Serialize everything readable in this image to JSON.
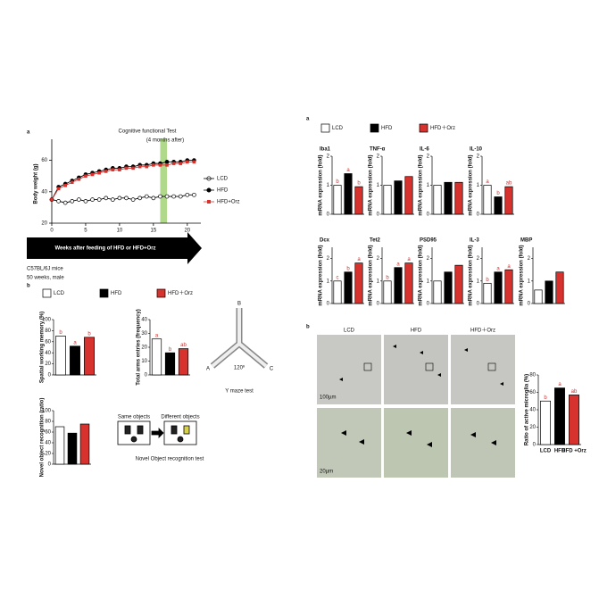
{
  "figure": {
    "group_colors": [
      "#ffffff",
      "#000000",
      "#d7322d"
    ],
    "left": {
      "panel_a": "a",
      "panel_b": "b",
      "arrow": "Weeks after feeding of HFD or HFD+Orz",
      "mouse": "C57BL/6J mice",
      "age": "50 weeks, male",
      "legend": [
        "LCD",
        "HFD",
        "HFD＋Orz"
      ],
      "ymaze": {
        "title": "Y maze test",
        "arms": [
          "A",
          "B",
          "C"
        ],
        "angle": "120º"
      },
      "nor": {
        "same": "Same objects",
        "diff": "Different objects",
        "title": "Novel Object recognition test"
      }
    },
    "right": {
      "panel_a": "a",
      "panel_b": "b",
      "legend": [
        "LCD",
        "HFD",
        "HFD＋Orz"
      ],
      "micro_cols": [
        "LCD",
        "HFD",
        "HFD＋Orz"
      ],
      "scale_low": "100µm",
      "scale_high": "20µm"
    }
  },
  "chart_data": [
    {
      "type": "line",
      "title": "Cognitive functional Test",
      "annotation": "(4 months after)",
      "ylabel": "Body weight (g)",
      "x": [
        0,
        1,
        2,
        3,
        4,
        5,
        6,
        7,
        8,
        9,
        10,
        11,
        12,
        13,
        14,
        15,
        16,
        17,
        18,
        19,
        20,
        21
      ],
      "xlim": [
        0,
        22
      ],
      "xticks": [
        0,
        5,
        10,
        15,
        20
      ],
      "ylim": [
        20,
        70
      ],
      "yticks": [
        20,
        40,
        60
      ],
      "highlight_x": [
        16,
        17
      ],
      "series": [
        {
          "name": "LCD",
          "color": "#000000",
          "marker": "open",
          "values": [
            35,
            34,
            33,
            34,
            35,
            34,
            35,
            35,
            36,
            35,
            36,
            36,
            35,
            36,
            37,
            36,
            37,
            37,
            37,
            37,
            38,
            38
          ]
        },
        {
          "name": "HFD",
          "color": "#000000",
          "marker": "filled",
          "values": [
            35,
            43,
            45,
            47,
            49,
            51,
            52,
            53,
            54,
            55,
            55,
            56,
            56,
            57,
            57,
            58,
            58,
            59,
            59,
            59,
            60,
            60
          ]
        },
        {
          "name": "HFD+Orz",
          "color": "#d7322d",
          "marker": "square",
          "values": [
            35,
            42,
            44,
            46,
            48,
            50,
            51,
            52,
            53,
            54,
            54,
            55,
            55,
            56,
            56,
            57,
            57,
            57,
            58,
            58,
            59,
            59
          ]
        }
      ]
    },
    {
      "type": "bar",
      "ylabel": "Spatial working memory (%)",
      "values": [
        70,
        52,
        68
      ],
      "ylim": [
        0,
        100
      ],
      "yticks": [
        0,
        20,
        40,
        60,
        80,
        100
      ],
      "letters": [
        "b",
        "a",
        "b"
      ]
    },
    {
      "type": "bar",
      "ylabel": "Total arms entries (frequency)",
      "values": [
        26,
        16,
        19
      ],
      "ylim": [
        0,
        40
      ],
      "yticks": [
        0,
        10,
        20,
        30,
        40
      ],
      "letters": [
        "a",
        "b",
        "ab"
      ]
    },
    {
      "type": "bar",
      "ylabel": "Novel object recognition (ratio)",
      "values": [
        70,
        58,
        75
      ],
      "ylim": [
        0,
        100
      ],
      "yticks": [
        0,
        20,
        40,
        60,
        80,
        100
      ]
    },
    {
      "type": "bar",
      "title": "Iba1",
      "ylabel": "mRNA expression (fold)",
      "values": [
        1.0,
        1.4,
        0.95
      ],
      "ylim": [
        0,
        2
      ],
      "yticks": [
        0,
        1,
        2
      ],
      "letters": [
        "b",
        "a",
        "b"
      ]
    },
    {
      "type": "bar",
      "title": "TNF-α",
      "ylabel": "mRNA expression (fold)",
      "values": [
        1.0,
        1.15,
        1.3
      ],
      "ylim": [
        0,
        2
      ],
      "yticks": [
        0,
        1,
        2
      ]
    },
    {
      "type": "bar",
      "title": "IL-6",
      "ylabel": "mRNA expression (fold)",
      "values": [
        1.0,
        1.1,
        1.1
      ],
      "ylim": [
        0,
        2
      ],
      "yticks": [
        0,
        1,
        2
      ]
    },
    {
      "type": "bar",
      "title": "IL-10",
      "ylabel": "mRNA expression (fold)",
      "values": [
        1.0,
        0.6,
        0.95
      ],
      "ylim": [
        0,
        2
      ],
      "yticks": [
        0,
        1,
        2
      ],
      "letters": [
        "a",
        "b",
        "ab"
      ]
    },
    {
      "type": "bar",
      "title": "Dcx",
      "ylabel": "mRNA expression (fold)",
      "values": [
        1.0,
        1.4,
        1.8
      ],
      "ylim": [
        0,
        2.5
      ],
      "yticks": [
        0,
        1,
        2
      ],
      "letters": [
        "c",
        "b",
        "a"
      ]
    },
    {
      "type": "bar",
      "title": "Tet2",
      "ylabel": "mRNA expression (fold)",
      "values": [
        1.0,
        1.6,
        1.8
      ],
      "ylim": [
        0,
        2.5
      ],
      "yticks": [
        0,
        1,
        2
      ],
      "letters": [
        "b",
        "a",
        "a"
      ]
    },
    {
      "type": "bar",
      "title": "PSD95",
      "ylabel": "mRNA expression (fold)",
      "values": [
        1.0,
        1.4,
        1.7
      ],
      "ylim": [
        0,
        2.5
      ],
      "yticks": [
        0,
        1,
        2
      ]
    },
    {
      "type": "bar",
      "title": "IL-3",
      "ylabel": "mRNA expression (fold)",
      "values": [
        0.9,
        1.4,
        1.5
      ],
      "ylim": [
        0,
        2.5
      ],
      "yticks": [
        0,
        1,
        2
      ],
      "letters": [
        "b",
        "a",
        "a"
      ]
    },
    {
      "type": "bar",
      "title": "MBP",
      "ylabel": "mRNA expression (fold)",
      "values": [
        0.6,
        1.0,
        1.4
      ],
      "ylim": [
        0,
        2.5
      ],
      "yticks": [
        0,
        1,
        2
      ]
    },
    {
      "type": "bar",
      "ylabel": "Ratio of active microglia (%)",
      "categories": [
        "LCD",
        "HFD",
        "HFD +Orz"
      ],
      "values": [
        50,
        65,
        57
      ],
      "ylim": [
        0,
        80
      ],
      "yticks": [
        0,
        20,
        40,
        60,
        80
      ],
      "letters": [
        "b",
        "a",
        "ab"
      ]
    }
  ]
}
